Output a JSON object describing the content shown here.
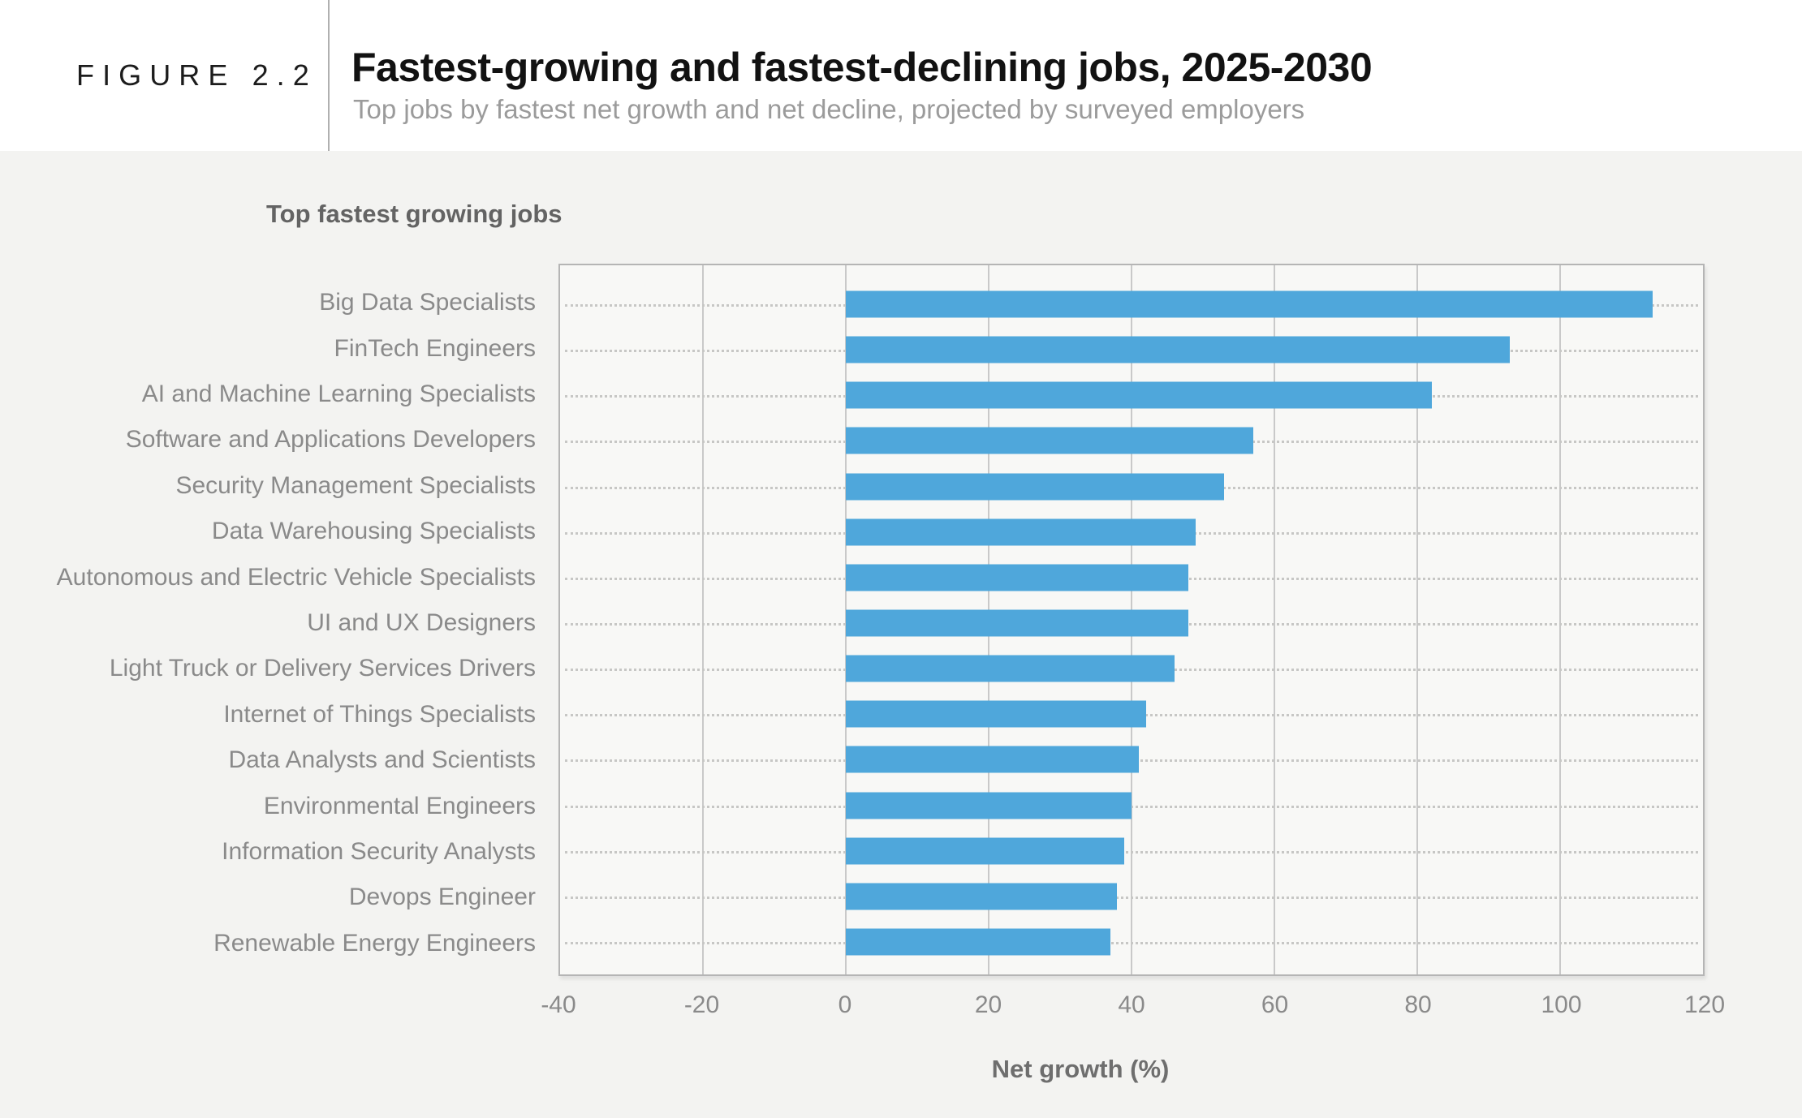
{
  "header": {
    "figure_label": "FIGURE 2.2",
    "title": "Fastest-growing and fastest-declining jobs, 2025-2030",
    "subtitle": "Top jobs by fastest net growth and net decline, projected by surveyed employers"
  },
  "section_label": "Top fastest growing jobs",
  "colors": {
    "bar": "#4FA7DB",
    "page_background": "#f3f3f1",
    "plot_background": "#f8f8f6",
    "plot_border": "#b5b5b5",
    "gridline": "#c9c9c9",
    "text_gray": "#8a8a8a"
  },
  "chart_data": {
    "type": "bar",
    "orientation": "horizontal",
    "title": "Top fastest growing jobs",
    "xlabel": "Net growth (%)",
    "ylabel": "",
    "xlim": [
      -40,
      120
    ],
    "xticks": [
      -40,
      -20,
      0,
      20,
      40,
      60,
      80,
      100,
      120
    ],
    "grid": true,
    "legend": false,
    "categories": [
      "Big Data Specialists",
      "FinTech Engineers",
      "AI and Machine Learning Specialists",
      "Software and Applications Developers",
      "Security Management Specialists",
      "Data Warehousing Specialists",
      "Autonomous and Electric Vehicle Specialists",
      "UI and UX Designers",
      "Light Truck or Delivery Services Drivers",
      "Internet of Things Specialists",
      "Data Analysts and Scientists",
      "Environmental Engineers",
      "Information Security Analysts",
      "Devops Engineer",
      "Renewable Energy Engineers"
    ],
    "values": [
      113,
      93,
      82,
      57,
      53,
      49,
      48,
      48,
      46,
      42,
      41,
      40,
      39,
      38,
      37
    ]
  }
}
